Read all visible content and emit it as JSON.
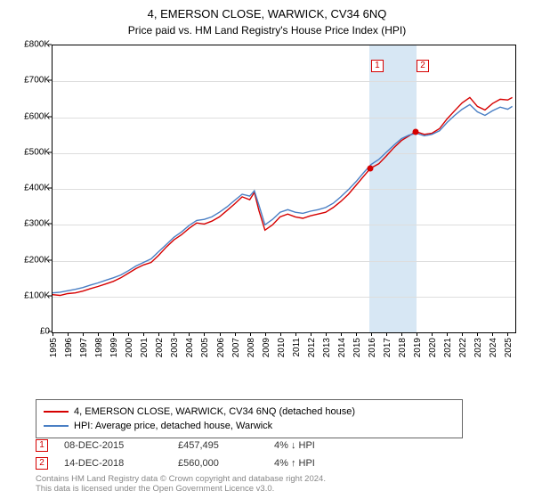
{
  "title": "4, EMERSON CLOSE, WARWICK, CV34 6NQ",
  "subtitle": "Price paid vs. HM Land Registry's House Price Index (HPI)",
  "chart": {
    "type": "line",
    "background_color": "#ffffff",
    "grid_color": "#dddddd",
    "axis_color": "#000000",
    "x_start": 1995,
    "x_end": 2025.5,
    "x_ticks": [
      1995,
      1996,
      1997,
      1998,
      1999,
      2000,
      2001,
      2002,
      2003,
      2004,
      2005,
      2006,
      2007,
      2008,
      2009,
      2010,
      2011,
      2012,
      2013,
      2014,
      2015,
      2016,
      2017,
      2018,
      2019,
      2020,
      2021,
      2022,
      2023,
      2024,
      2025
    ],
    "ylim": [
      0,
      800000
    ],
    "ytick_step": 100000,
    "ytick_labels": [
      "£0",
      "£100K",
      "£200K",
      "£300K",
      "£400K",
      "£500K",
      "£600K",
      "£700K",
      "£800K"
    ],
    "xtick_fontsize": 10,
    "ytick_fontsize": 10,
    "highlight_band": {
      "x_from": 2015.9,
      "x_to": 2019.0,
      "color": "#d7e7f4"
    },
    "series": [
      {
        "name": "property",
        "label": "4, EMERSON CLOSE, WARWICK, CV34 6NQ (detached house)",
        "color": "#d60000",
        "line_width": 1.4,
        "data": [
          [
            1995.0,
            105000
          ],
          [
            1995.5,
            103000
          ],
          [
            1996.0,
            108000
          ],
          [
            1996.5,
            110000
          ],
          [
            1997.0,
            115000
          ],
          [
            1997.5,
            122000
          ],
          [
            1998.0,
            128000
          ],
          [
            1998.5,
            135000
          ],
          [
            1999.0,
            142000
          ],
          [
            1999.5,
            152000
          ],
          [
            2000.0,
            165000
          ],
          [
            2000.5,
            178000
          ],
          [
            2001.0,
            188000
          ],
          [
            2001.5,
            195000
          ],
          [
            2002.0,
            215000
          ],
          [
            2002.5,
            238000
          ],
          [
            2003.0,
            258000
          ],
          [
            2003.5,
            272000
          ],
          [
            2004.0,
            290000
          ],
          [
            2004.5,
            305000
          ],
          [
            2005.0,
            302000
          ],
          [
            2005.5,
            310000
          ],
          [
            2006.0,
            322000
          ],
          [
            2006.5,
            340000
          ],
          [
            2007.0,
            358000
          ],
          [
            2007.5,
            378000
          ],
          [
            2008.0,
            370000
          ],
          [
            2008.3,
            390000
          ],
          [
            2008.6,
            340000
          ],
          [
            2009.0,
            285000
          ],
          [
            2009.5,
            300000
          ],
          [
            2010.0,
            322000
          ],
          [
            2010.5,
            330000
          ],
          [
            2011.0,
            322000
          ],
          [
            2011.5,
            318000
          ],
          [
            2012.0,
            325000
          ],
          [
            2012.5,
            330000
          ],
          [
            2013.0,
            335000
          ],
          [
            2013.5,
            348000
          ],
          [
            2014.0,
            365000
          ],
          [
            2014.5,
            385000
          ],
          [
            2015.0,
            410000
          ],
          [
            2015.5,
            435000
          ],
          [
            2015.95,
            457495
          ],
          [
            2016.5,
            470000
          ],
          [
            2017.0,
            492000
          ],
          [
            2017.5,
            515000
          ],
          [
            2018.0,
            535000
          ],
          [
            2018.5,
            548000
          ],
          [
            2018.95,
            560000
          ],
          [
            2019.5,
            552000
          ],
          [
            2020.0,
            555000
          ],
          [
            2020.5,
            568000
          ],
          [
            2021.0,
            595000
          ],
          [
            2021.5,
            618000
          ],
          [
            2022.0,
            640000
          ],
          [
            2022.5,
            655000
          ],
          [
            2023.0,
            630000
          ],
          [
            2023.5,
            620000
          ],
          [
            2024.0,
            638000
          ],
          [
            2024.5,
            650000
          ],
          [
            2025.0,
            648000
          ],
          [
            2025.3,
            655000
          ]
        ]
      },
      {
        "name": "hpi",
        "label": "HPI: Average price, detached house, Warwick",
        "color": "#4a7fc4",
        "line_width": 1.4,
        "data": [
          [
            1995.0,
            110000
          ],
          [
            1995.5,
            112000
          ],
          [
            1996.0,
            116000
          ],
          [
            1996.5,
            120000
          ],
          [
            1997.0,
            125000
          ],
          [
            1997.5,
            132000
          ],
          [
            1998.0,
            138000
          ],
          [
            1998.5,
            145000
          ],
          [
            1999.0,
            152000
          ],
          [
            1999.5,
            160000
          ],
          [
            2000.0,
            172000
          ],
          [
            2000.5,
            185000
          ],
          [
            2001.0,
            195000
          ],
          [
            2001.5,
            205000
          ],
          [
            2002.0,
            225000
          ],
          [
            2002.5,
            245000
          ],
          [
            2003.0,
            265000
          ],
          [
            2003.5,
            280000
          ],
          [
            2004.0,
            298000
          ],
          [
            2004.5,
            312000
          ],
          [
            2005.0,
            315000
          ],
          [
            2005.5,
            322000
          ],
          [
            2006.0,
            335000
          ],
          [
            2006.5,
            350000
          ],
          [
            2007.0,
            368000
          ],
          [
            2007.5,
            385000
          ],
          [
            2008.0,
            380000
          ],
          [
            2008.3,
            395000
          ],
          [
            2008.6,
            355000
          ],
          [
            2009.0,
            300000
          ],
          [
            2009.5,
            315000
          ],
          [
            2010.0,
            335000
          ],
          [
            2010.5,
            342000
          ],
          [
            2011.0,
            335000
          ],
          [
            2011.5,
            332000
          ],
          [
            2012.0,
            338000
          ],
          [
            2012.5,
            342000
          ],
          [
            2013.0,
            348000
          ],
          [
            2013.5,
            360000
          ],
          [
            2014.0,
            378000
          ],
          [
            2014.5,
            398000
          ],
          [
            2015.0,
            420000
          ],
          [
            2015.5,
            445000
          ],
          [
            2016.0,
            468000
          ],
          [
            2016.5,
            482000
          ],
          [
            2017.0,
            502000
          ],
          [
            2017.5,
            522000
          ],
          [
            2018.0,
            540000
          ],
          [
            2018.5,
            550000
          ],
          [
            2019.0,
            555000
          ],
          [
            2019.5,
            548000
          ],
          [
            2020.0,
            552000
          ],
          [
            2020.5,
            562000
          ],
          [
            2021.0,
            585000
          ],
          [
            2021.5,
            605000
          ],
          [
            2022.0,
            622000
          ],
          [
            2022.5,
            635000
          ],
          [
            2023.0,
            615000
          ],
          [
            2023.5,
            605000
          ],
          [
            2024.0,
            618000
          ],
          [
            2024.5,
            628000
          ],
          [
            2025.0,
            622000
          ],
          [
            2025.3,
            630000
          ]
        ]
      }
    ],
    "sale_points": [
      {
        "marker": "1",
        "x": 2015.95,
        "y": 457495,
        "color": "#d60000",
        "label_x": 2016.4,
        "label_y": 760000,
        "border": "#d60000"
      },
      {
        "marker": "2",
        "x": 2018.95,
        "y": 560000,
        "color": "#d60000",
        "label_x": 2019.4,
        "label_y": 760000,
        "border": "#d60000"
      }
    ]
  },
  "legend": {
    "border_color": "#666666",
    "items": [
      {
        "color": "#d60000",
        "label": "4, EMERSON CLOSE, WARWICK, CV34 6NQ (detached house)"
      },
      {
        "color": "#4a7fc4",
        "label": "HPI: Average price, detached house, Warwick"
      }
    ]
  },
  "sales": [
    {
      "marker": "1",
      "date": "08-DEC-2015",
      "price": "£457,495",
      "diff": "4% ↓ HPI",
      "border": "#d60000"
    },
    {
      "marker": "2",
      "date": "14-DEC-2018",
      "price": "£560,000",
      "diff": "4% ↑ HPI",
      "border": "#d60000"
    }
  ],
  "footer": {
    "line1": "Contains HM Land Registry data © Crown copyright and database right 2024.",
    "line2": "This data is licensed under the Open Government Licence v3.0."
  }
}
